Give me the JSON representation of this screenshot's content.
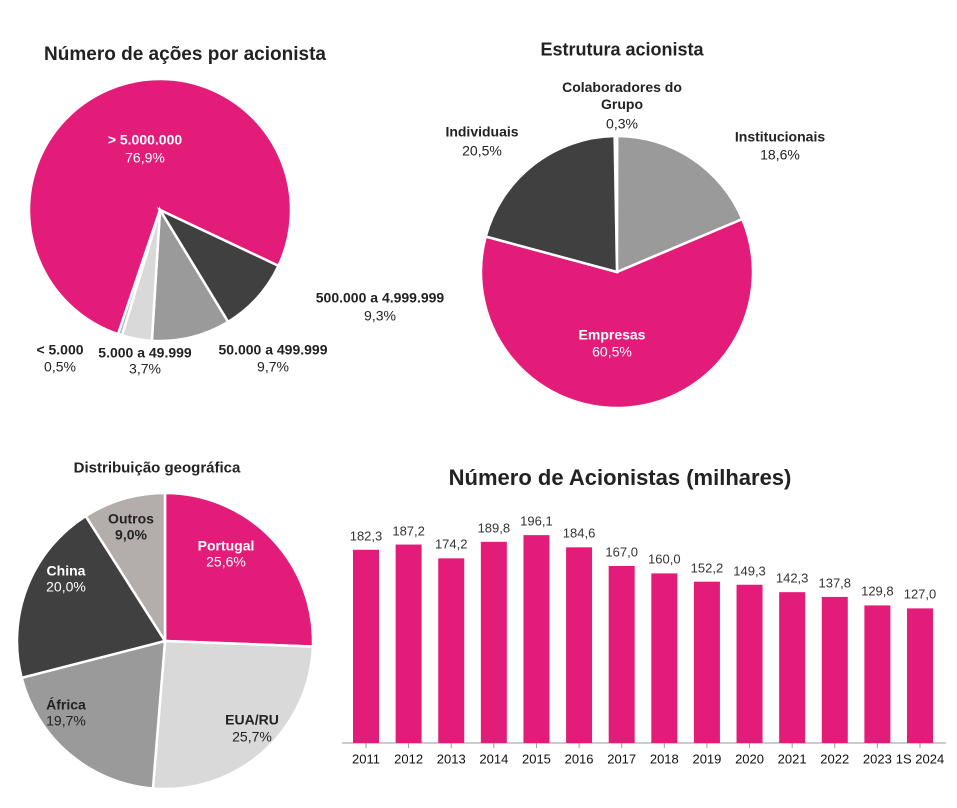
{
  "chart_data": [
    {
      "type": "pie",
      "title": "Número de ações por acionista",
      "labels": [
        "> 5.000.000",
        "500.000 a 4.999.999",
        "50.000 a 499.999",
        "5.000 a 49.999",
        "< 5.000"
      ],
      "values": [
        76.9,
        9.3,
        9.7,
        3.7,
        0.5
      ],
      "value_labels": [
        "76,9%",
        "9,3%",
        "9,7%",
        "3,7%",
        "0,5%"
      ],
      "colors": [
        "#e31c79",
        "#404040",
        "#9a9a9a",
        "#d9d9d9",
        "#b5b5b5"
      ]
    },
    {
      "type": "pie",
      "title": "Estrutura acionista",
      "labels": [
        "Colaboradores do Grupo",
        "Institucionais",
        "Empresas",
        "Individuais"
      ],
      "values": [
        0.3,
        18.6,
        60.5,
        20.5
      ],
      "value_labels": [
        "0,3%",
        "18,6%",
        "60,5%",
        "20,5%"
      ],
      "colors": [
        "#d9d9d9",
        "#9a9a9a",
        "#e31c79",
        "#404040"
      ]
    },
    {
      "type": "pie",
      "title": "Distribuição geográfica",
      "labels": [
        "Portugal",
        "EUA/RU",
        "África",
        "China",
        "Outros"
      ],
      "values": [
        25.6,
        25.7,
        19.7,
        20.0,
        9.0
      ],
      "value_labels": [
        "25,6%",
        "25,7%",
        "19,7%",
        "20,0%",
        "9,0%"
      ],
      "colors": [
        "#e31c79",
        "#d9d9d9",
        "#9a9a9a",
        "#404040",
        "#b3aeac"
      ]
    },
    {
      "type": "bar",
      "title": "Número de Acionistas (milhares)",
      "categories": [
        "2011",
        "2012",
        "2013",
        "2014",
        "2015",
        "2016",
        "2017",
        "2018",
        "2019",
        "2020",
        "2021",
        "2022",
        "2023",
        "1S 2024"
      ],
      "values": [
        182.3,
        187.2,
        174.2,
        189.8,
        196.1,
        184.6,
        167.0,
        160.0,
        152.2,
        149.3,
        142.3,
        137.8,
        129.8,
        127.0
      ],
      "value_labels": [
        "182,3",
        "187,2",
        "174,2",
        "189,8",
        "196,1",
        "184,6",
        "167,0",
        "160,0",
        "152,2",
        "149,3",
        "142,3",
        "137,8",
        "129,8",
        "127,0"
      ],
      "color": "#e31c79"
    }
  ]
}
